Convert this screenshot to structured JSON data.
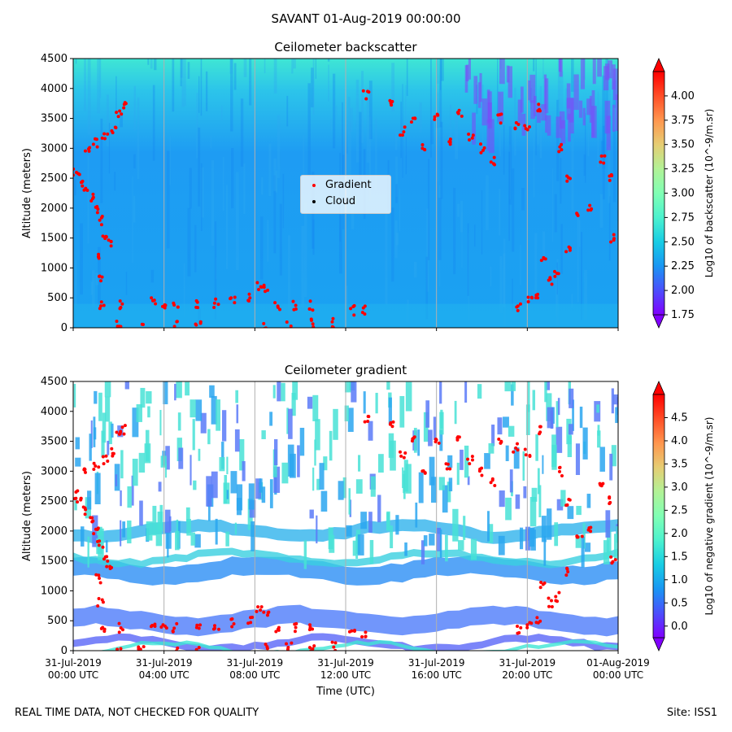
{
  "header": {
    "suptitle": "SAVANT 01-Aug-2019 00:00:00",
    "footer_left": "REAL TIME DATA, NOT CHECKED FOR QUALITY",
    "footer_right": "Site: ISS1"
  },
  "colors": {
    "gradient_marker": "#ff0000",
    "cloud_marker": "#000000",
    "colormap": [
      "#8000ff",
      "#4c4efc",
      "#1996f3",
      "#18cde4",
      "#4cf2ce",
      "#80ffb4",
      "#b2f296",
      "#e6cd73",
      "#ff964e",
      "#ff4e27",
      "#ff0000"
    ]
  },
  "chart_data": [
    {
      "type": "heatmap",
      "title": "Ceilometer backscatter",
      "xlabel": "",
      "ylabel": "Altitude (meters)",
      "ylim": [
        0,
        4500
      ],
      "yticks": [
        "0",
        "500",
        "1000",
        "1500",
        "2000",
        "2500",
        "3000",
        "3500",
        "4000",
        "4500"
      ],
      "xticks": [],
      "colorbar": {
        "label": "Log10 of backscatter (10^-9/m.sr)",
        "range": [
          1.75,
          4.25
        ],
        "ticks": [
          "1.75",
          "2.00",
          "2.25",
          "2.50",
          "2.75",
          "3.00",
          "3.25",
          "3.50",
          "3.75",
          "4.00"
        ]
      },
      "legend": {
        "placement": "center",
        "entries": [
          "Gradient",
          "Cloud"
        ]
      },
      "gradient_points_hours": [
        [
          0.1,
          2600
        ],
        [
          0.3,
          2500
        ],
        [
          0.5,
          2350
        ],
        [
          0.8,
          2200
        ],
        [
          1.0,
          2000
        ],
        [
          1.2,
          1800
        ],
        [
          1.4,
          1500
        ],
        [
          1.6,
          1400
        ],
        [
          0.6,
          3000
        ],
        [
          1.0,
          3100
        ],
        [
          1.4,
          3200
        ],
        [
          1.8,
          3300
        ],
        [
          2.0,
          3600
        ],
        [
          2.2,
          3700
        ],
        [
          1.1,
          1200
        ],
        [
          1.2,
          800
        ],
        [
          1.3,
          400
        ],
        [
          2.1,
          380
        ],
        [
          3.5,
          480
        ],
        [
          4.0,
          400
        ],
        [
          4.5,
          370
        ],
        [
          5.5,
          400
        ],
        [
          6.3,
          420
        ],
        [
          7.0,
          450
        ],
        [
          7.8,
          520
        ],
        [
          8.2,
          700
        ],
        [
          8.5,
          650
        ],
        [
          9.0,
          380
        ],
        [
          9.7,
          380
        ],
        [
          10.5,
          370
        ],
        [
          12.3,
          290
        ],
        [
          12.8,
          290
        ],
        [
          2.0,
          30
        ],
        [
          3.0,
          30
        ],
        [
          4.5,
          30
        ],
        [
          5.5,
          30
        ],
        [
          8.5,
          30
        ],
        [
          9.5,
          50
        ],
        [
          10.5,
          70
        ],
        [
          11.5,
          80
        ],
        [
          14.5,
          3300
        ],
        [
          15.5,
          3000
        ],
        [
          16.0,
          3500
        ],
        [
          16.5,
          3100
        ],
        [
          17.0,
          3600
        ],
        [
          17.5,
          3200
        ],
        [
          18.0,
          3000
        ],
        [
          18.5,
          2800
        ],
        [
          18.8,
          3500
        ],
        [
          19.5,
          3400
        ],
        [
          20.0,
          3300
        ],
        [
          20.5,
          3700
        ],
        [
          21.5,
          3000
        ],
        [
          21.8,
          2500
        ],
        [
          22.3,
          1900
        ],
        [
          22.8,
          2000
        ],
        [
          23.3,
          2800
        ],
        [
          23.6,
          2500
        ],
        [
          23.8,
          1500
        ],
        [
          20.7,
          1100
        ],
        [
          21.0,
          800
        ],
        [
          21.3,
          900
        ],
        [
          21.8,
          1300
        ],
        [
          19.6,
          350
        ],
        [
          20.1,
          450
        ],
        [
          20.5,
          500
        ],
        [
          12.9,
          3900
        ],
        [
          14.0,
          3800
        ],
        [
          15.0,
          3500
        ]
      ]
    },
    {
      "type": "heatmap",
      "title": "Ceilometer gradient",
      "xlabel": "Time (UTC)",
      "ylabel": "Altitude (meters)",
      "ylim": [
        0,
        4500
      ],
      "yticks": [
        "0",
        "500",
        "1000",
        "1500",
        "2000",
        "2500",
        "3000",
        "3500",
        "4000",
        "4500"
      ],
      "xticks": [
        {
          "date": "31-Jul-2019",
          "time": "00:00 UTC",
          "hours": 0
        },
        {
          "date": "31-Jul-2019",
          "time": "04:00 UTC",
          "hours": 4
        },
        {
          "date": "31-Jul-2019",
          "time": "08:00 UTC",
          "hours": 8
        },
        {
          "date": "31-Jul-2019",
          "time": "12:00 UTC",
          "hours": 12
        },
        {
          "date": "31-Jul-2019",
          "time": "16:00 UTC",
          "hours": 16
        },
        {
          "date": "31-Jul-2019",
          "time": "20:00 UTC",
          "hours": 20
        },
        {
          "date": "01-Aug-2019",
          "time": "00:00 UTC",
          "hours": 24
        }
      ],
      "colorbar": {
        "label": "Log10 of negative gradient (10^-9/m.sr)",
        "range": [
          -0.25,
          5.0
        ],
        "ticks": [
          "0.0",
          "0.5",
          "1.0",
          "1.5",
          "2.0",
          "2.5",
          "3.0",
          "3.5",
          "4.0",
          "4.5"
        ]
      },
      "gradient_points_hours": "same as backscatter panel"
    }
  ]
}
